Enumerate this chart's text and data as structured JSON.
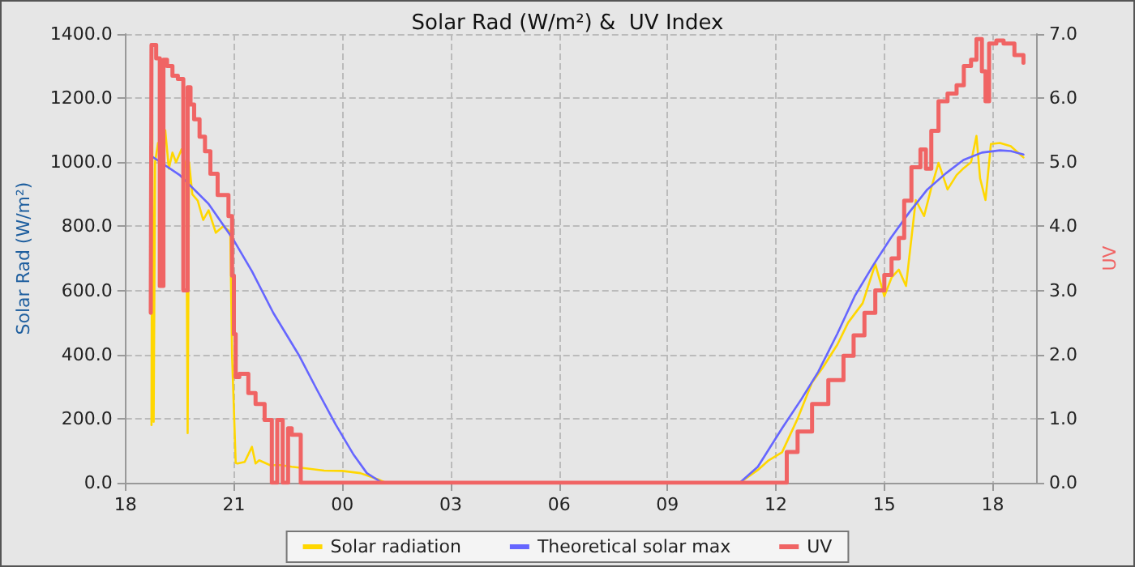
{
  "chart_data": {
    "type": "line",
    "title": "Solar Rad (W/m²) &  UV Index",
    "ylabel": "Solar Rad (W/m²)",
    "y2label": "UV",
    "xlim": [
      18,
      43.2
    ],
    "xticks": [
      {
        "value": 18,
        "label": "18"
      },
      {
        "value": 21,
        "label": "21"
      },
      {
        "value": 24,
        "label": "00"
      },
      {
        "value": 27,
        "label": "03"
      },
      {
        "value": 30,
        "label": "06"
      },
      {
        "value": 33,
        "label": "09"
      },
      {
        "value": 36,
        "label": "12"
      },
      {
        "value": 39,
        "label": "15"
      },
      {
        "value": 42,
        "label": "18"
      }
    ],
    "ylim": [
      0,
      1400
    ],
    "yticks": [
      {
        "value": 0,
        "label": "0.0"
      },
      {
        "value": 200,
        "label": "200.0"
      },
      {
        "value": 400,
        "label": "400.0"
      },
      {
        "value": 600,
        "label": "600.0"
      },
      {
        "value": 800,
        "label": "800.0"
      },
      {
        "value": 1000,
        "label": "1000.0"
      },
      {
        "value": 1200,
        "label": "1200.0"
      },
      {
        "value": 1400,
        "label": "1400.0"
      }
    ],
    "y2lim": [
      0,
      7
    ],
    "y2ticks": [
      {
        "value": 0,
        "label": "0.0"
      },
      {
        "value": 1,
        "label": "1.0"
      },
      {
        "value": 2,
        "label": "2.0"
      },
      {
        "value": 3,
        "label": "3.0"
      },
      {
        "value": 4,
        "label": "4.0"
      },
      {
        "value": 5,
        "label": "5.0"
      },
      {
        "value": 6,
        "label": "6.0"
      },
      {
        "value": 7,
        "label": "7.0"
      }
    ],
    "grid": true,
    "legend": "bottom",
    "marker": "none",
    "series": [
      {
        "name": "Solar radiation",
        "color": "#ffd700",
        "x": [
          18.72,
          18.74,
          18.78,
          18.82,
          18.9,
          19.0,
          19.1,
          19.2,
          19.3,
          19.4,
          19.55,
          19.68,
          19.72,
          19.76,
          19.85,
          20.0,
          20.15,
          20.3,
          20.5,
          20.7,
          20.9,
          20.95,
          21.0,
          21.05,
          21.1,
          21.3,
          21.5,
          21.6,
          21.7,
          22.0,
          22.3,
          22.6,
          23.0,
          23.5,
          24.0,
          24.5,
          25.0,
          25.2,
          30.0,
          35.0,
          35.5,
          35.8,
          36.17,
          36.6,
          37.0,
          37.3,
          37.7,
          38.0,
          38.4,
          38.75,
          39.0,
          39.2,
          39.4,
          39.6,
          39.87,
          40.1,
          40.3,
          40.5,
          40.75,
          41.0,
          41.2,
          41.4,
          41.55,
          41.65,
          41.8,
          41.95,
          42.2,
          42.5,
          42.85
        ],
        "values": [
          180,
          1149,
          190,
          1000,
          1060,
          1020,
          1100,
          980,
          1030,
          1000,
          1040,
          980,
          155,
          1000,
          900,
          880,
          820,
          850,
          780,
          800,
          783,
          396,
          231,
          62,
          60,
          65,
          112,
          60,
          70,
          55,
          55,
          50,
          45,
          38,
          37,
          30,
          10,
          0,
          0,
          0,
          40,
          70,
          95,
          200,
          313,
          360,
          431,
          500,
          560,
          682,
          582,
          640,
          665,
          614,
          882,
          832,
          920,
          998,
          915,
          960,
          982,
          1000,
          1082,
          950,
          882,
          1057,
          1060,
          1050,
          1015
        ]
      },
      {
        "name": "Theoretical solar max",
        "color": "#6666ff",
        "x": [
          18.72,
          19.5,
          20.3,
          21.0,
          21.5,
          22.09,
          22.81,
          23.3,
          23.82,
          24.3,
          24.68,
          25.1,
          30.0,
          35.0,
          35.5,
          36.17,
          36.7,
          37.17,
          37.7,
          38.18,
          38.7,
          39.18,
          39.7,
          40.19,
          40.7,
          41.19,
          41.7,
          42.2,
          42.5,
          42.85
        ],
        "values": [
          1019,
          960,
          870,
          756,
          660,
          530,
          396,
          290,
          181,
          90,
          30,
          0,
          0,
          0,
          50,
          170,
          260,
          346,
          465,
          582,
          680,
          764,
          845,
          915,
          965,
          1007,
          1030,
          1037,
          1035,
          1024
        ]
      },
      {
        "name": "UV",
        "type": "step",
        "axis": "y2",
        "color": "#f06464",
        "x": [
          18.7,
          18.72,
          18.85,
          18.95,
          19.05,
          19.15,
          19.3,
          19.45,
          19.6,
          19.72,
          19.8,
          19.9,
          20.05,
          20.2,
          20.35,
          20.55,
          20.85,
          20.95,
          21.0,
          21.05,
          21.15,
          21.4,
          21.6,
          21.85,
          22.05,
          22.2,
          22.35,
          22.5,
          22.6,
          22.85,
          23.0,
          30.0,
          36.3,
          36.6,
          37.0,
          37.45,
          37.87,
          38.15,
          38.45,
          38.75,
          39.0,
          39.2,
          39.4,
          39.55,
          39.75,
          40.0,
          40.15,
          40.3,
          40.5,
          40.75,
          41.0,
          41.2,
          41.4,
          41.55,
          41.7,
          41.8,
          41.9,
          42.1,
          42.3,
          42.6,
          42.85
        ],
        "values": [
          2.65,
          6.83,
          6.62,
          3.07,
          6.6,
          6.5,
          6.35,
          6.3,
          3.0,
          6.17,
          5.9,
          5.67,
          5.4,
          5.17,
          4.82,
          4.49,
          4.16,
          3.23,
          2.32,
          1.65,
          1.7,
          1.4,
          1.23,
          0.98,
          0,
          0.98,
          0,
          0.85,
          0.75,
          0,
          0,
          0,
          0.48,
          0.8,
          1.23,
          1.6,
          1.98,
          2.3,
          2.65,
          3.0,
          3.24,
          3.5,
          3.82,
          4.4,
          4.92,
          5.2,
          4.9,
          5.49,
          5.95,
          6.07,
          6.2,
          6.5,
          6.6,
          6.92,
          6.42,
          5.95,
          6.85,
          6.9,
          6.85,
          6.67,
          6.55
        ]
      }
    ]
  }
}
